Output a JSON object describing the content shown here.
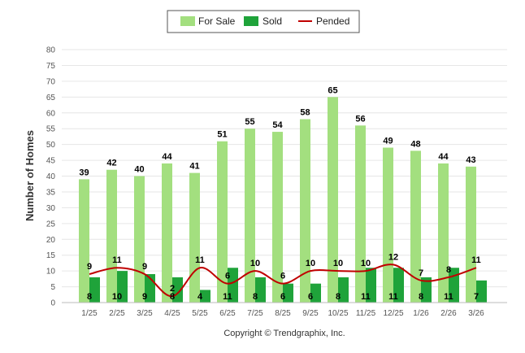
{
  "chart_data": {
    "type": "bar",
    "ylabel": "Number of Homes",
    "xlabel": "",
    "ylim": [
      0,
      80
    ],
    "ytick_step": 5,
    "grid": true,
    "legend_position": "top-center",
    "categories": [
      "1/25",
      "2/25",
      "3/25",
      "4/25",
      "5/25",
      "6/25",
      "7/25",
      "8/25",
      "9/25",
      "10/25",
      "11/25",
      "12/25",
      "1/26",
      "2/26",
      "3/26"
    ],
    "series": [
      {
        "name": "For Sale",
        "type": "bar",
        "color": "#a3df7f",
        "values": [
          39,
          42,
          40,
          44,
          41,
          51,
          55,
          54,
          58,
          65,
          56,
          49,
          48,
          44,
          43
        ],
        "labels": [
          "39",
          "42",
          "40",
          "44",
          "41",
          "51",
          "55",
          "54",
          "58",
          "65",
          "56",
          "49",
          "48",
          "44",
          "43"
        ]
      },
      {
        "name": "Sold",
        "type": "bar",
        "color": "#1fa33a",
        "values": [
          8,
          10,
          9,
          8,
          4,
          11,
          8,
          6,
          6,
          8,
          11,
          11,
          8,
          11,
          7
        ],
        "labels": [
          "8",
          "10",
          "9",
          "8",
          "4",
          "11",
          "8",
          "6",
          "6",
          "8",
          "11",
          "11",
          "8",
          "11",
          "7"
        ]
      },
      {
        "name": "Pended",
        "type": "line",
        "color": "#c00000",
        "values": [
          9,
          11,
          9,
          2,
          11,
          6,
          10,
          6,
          10,
          10,
          10,
          12,
          7,
          8,
          11
        ],
        "labels": [
          "9",
          "11",
          "9",
          "2",
          "11",
          "6",
          "10",
          "6",
          "10",
          "10",
          "10",
          "12",
          "7",
          "8",
          "11"
        ]
      }
    ]
  },
  "footer": {
    "copyright": "Copyright © Trendgraphix, Inc."
  }
}
